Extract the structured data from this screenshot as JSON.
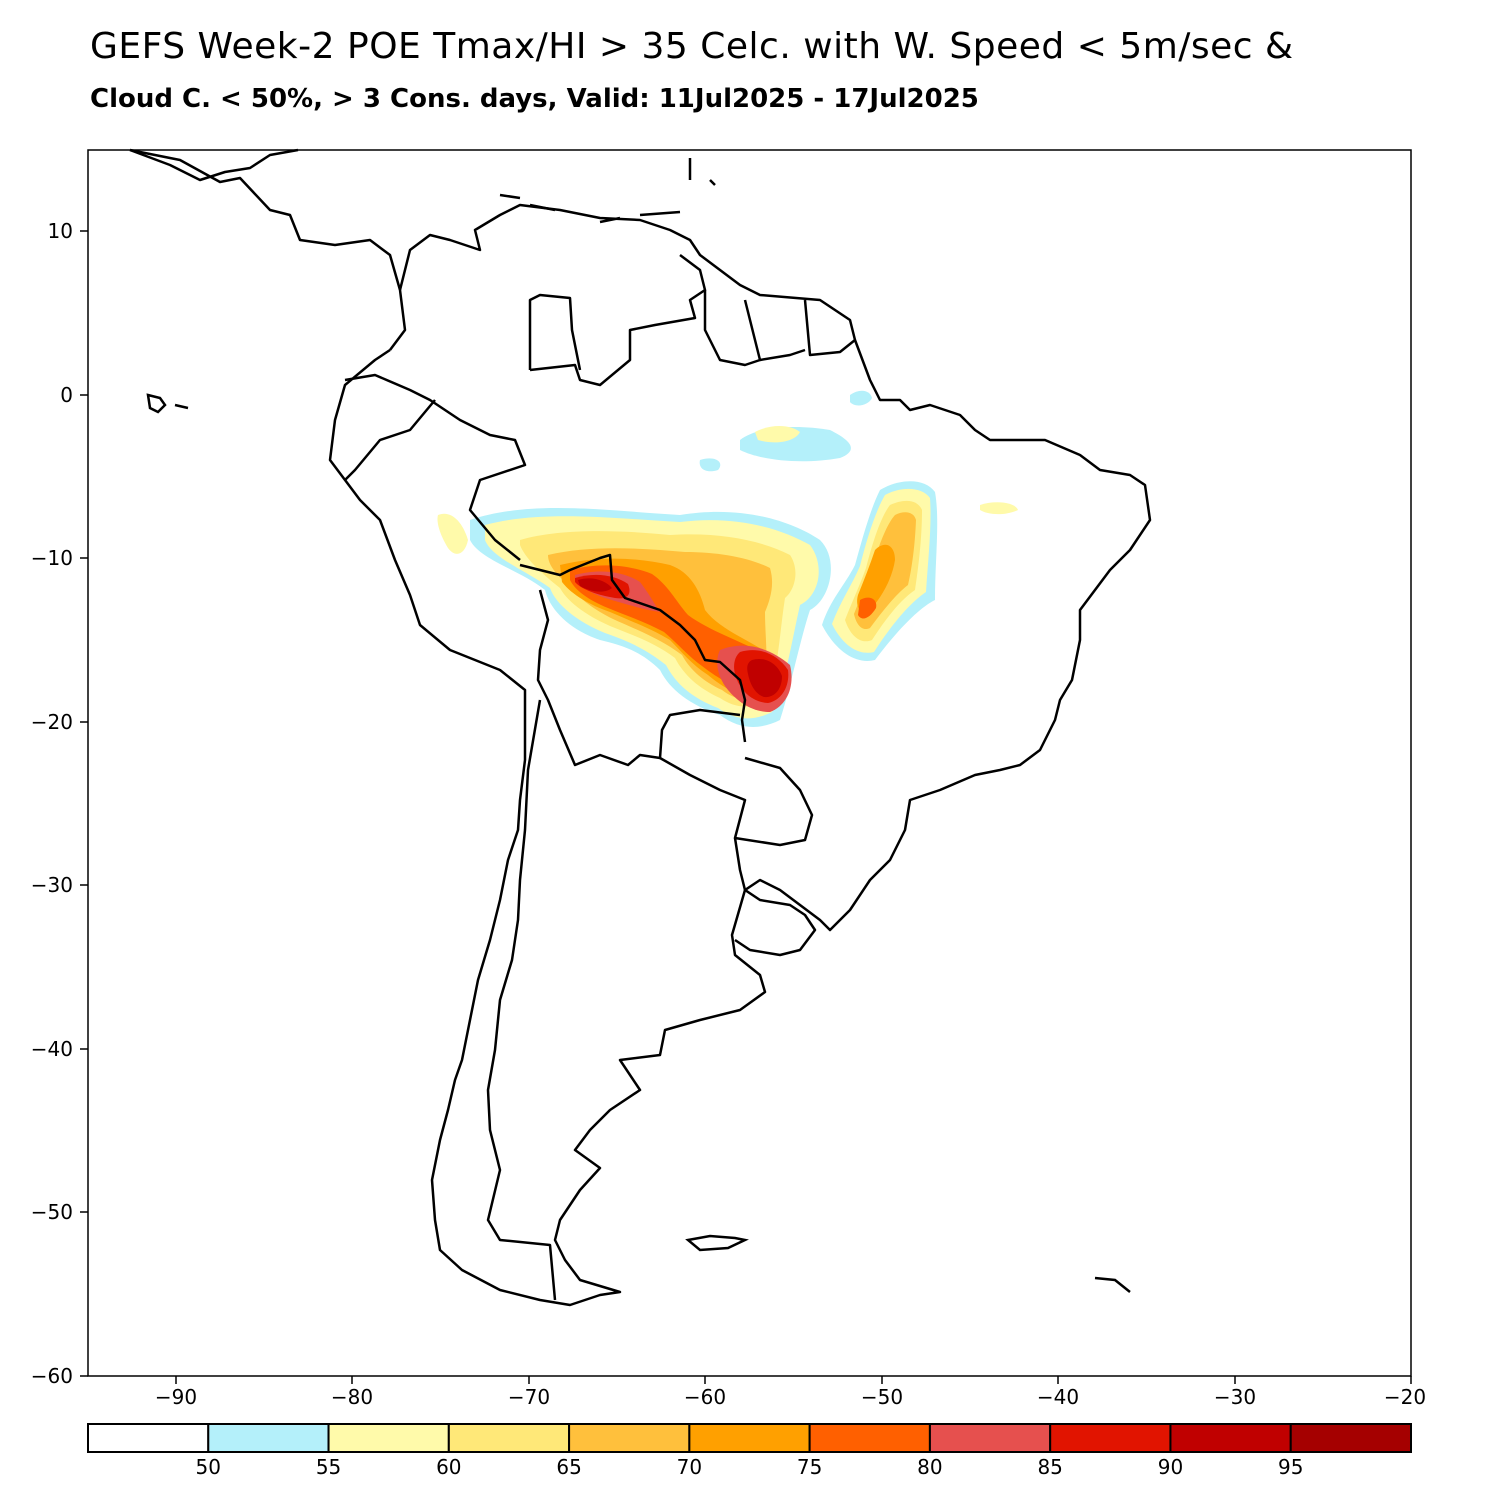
{
  "title": {
    "line1": "GEFS Week-2 POE Tmax/HI > 35 Celc. with W. Speed < 5m/sec &",
    "line2": "Cloud C. < 50%, > 3 Cons. days, Valid: 11Jul2025 - 17Jul2025"
  },
  "map": {
    "lon_range": [
      -95,
      -20
    ],
    "lat_range": [
      -60,
      15
    ],
    "lat_ticks": [
      "10",
      "0",
      "−10",
      "−20",
      "−30",
      "−40",
      "−50",
      "−60"
    ],
    "lon_ticks": [
      "−90",
      "−80",
      "−70",
      "−60",
      "−50",
      "−40",
      "−30",
      "−20"
    ]
  },
  "colorbar": {
    "labels": [
      "50",
      "55",
      "60",
      "65",
      "70",
      "75",
      "80",
      "85",
      "90",
      "95"
    ],
    "colors": [
      "#ffffff",
      "#b4f0fa",
      "#fffaaa",
      "#ffe878",
      "#ffc03c",
      "#ffa000",
      "#ff6000",
      "#e6504e",
      "#e11400",
      "#c00000",
      "#a50000"
    ]
  }
}
